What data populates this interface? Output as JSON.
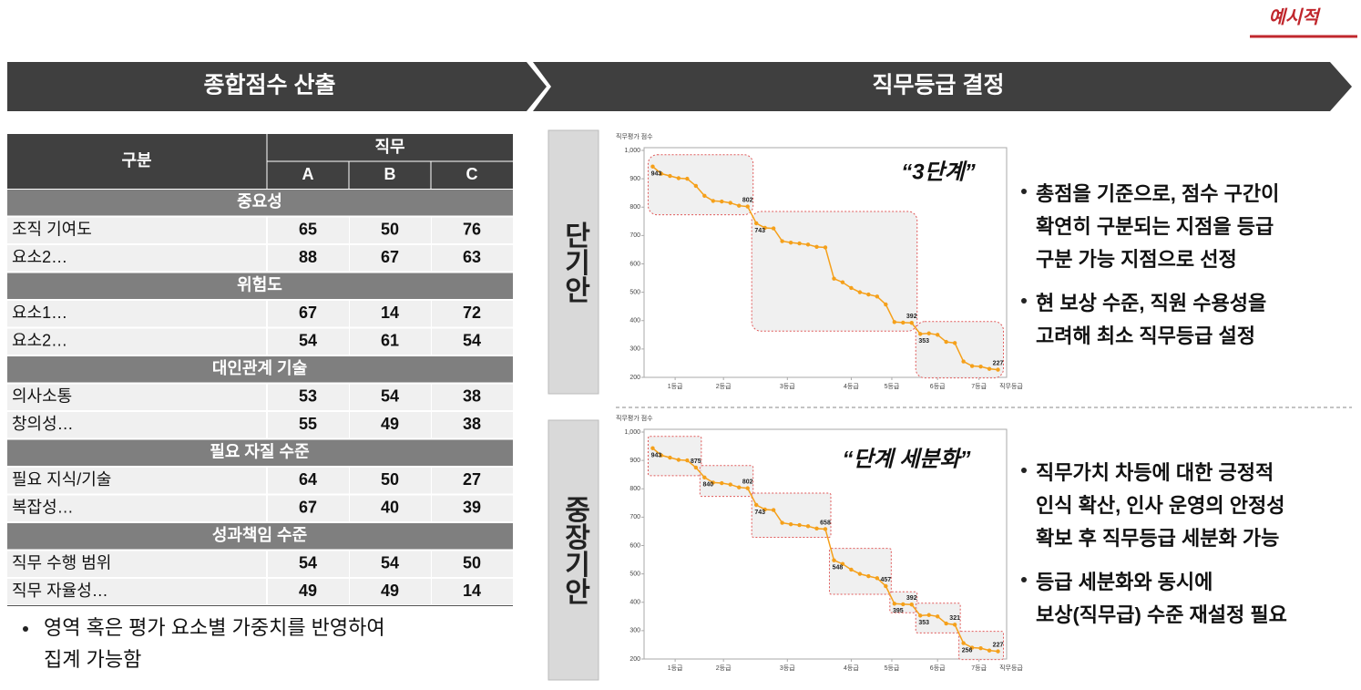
{
  "tag": "예시적",
  "header": {
    "left": "종합점수 산출",
    "right": "직무등급 결정"
  },
  "table": {
    "head": {
      "group": "구분",
      "job": "직무",
      "cols": [
        "A",
        "B",
        "C"
      ]
    },
    "sections": [
      {
        "title": "중요성",
        "rows": [
          [
            "조직 기여도",
            65,
            50,
            76
          ],
          [
            "요소2…",
            88,
            67,
            63
          ]
        ]
      },
      {
        "title": "위험도",
        "rows": [
          [
            "요소1…",
            67,
            14,
            72
          ],
          [
            "요소2…",
            54,
            61,
            54
          ]
        ]
      },
      {
        "title": "대인관계 기술",
        "rows": [
          [
            "의사소통",
            53,
            54,
            38
          ],
          [
            "창의성…",
            55,
            49,
            38
          ]
        ]
      },
      {
        "title": "필요 자질 수준",
        "rows": [
          [
            "필요 지식/기술",
            64,
            50,
            27
          ],
          [
            "복잡성…",
            67,
            40,
            39
          ]
        ]
      },
      {
        "title": "성과책임 수준",
        "rows": [
          [
            "직무 수행 범위",
            54,
            54,
            50
          ],
          [
            "직무 자율성…",
            49,
            49,
            14
          ]
        ]
      }
    ]
  },
  "note": [
    "영역 혹은 평가 요소별 가중치를 반영하여",
    "집계 가능함"
  ],
  "panels": [
    {
      "label": "단기안",
      "quote": "“3단계”",
      "bullets": [
        [
          "총점을 기준으로, 점수 구간이",
          "확연히 구분되는 지점을 등급",
          "구분 가능 지점으로 선정"
        ],
        [
          "현 보상 수준, 직원 수용성을",
          "고려해 최소 직무등급 설정"
        ]
      ],
      "chart": {
        "type": "line",
        "y_label": "직무평가 점수",
        "x_label": "직무등급",
        "color": "#f5a01a",
        "values": [
          943,
          918,
          910,
          902,
          900,
          875,
          840,
          822,
          820,
          815,
          805,
          802,
          743,
          727,
          725,
          680,
          675,
          672,
          668,
          660,
          658,
          548,
          535,
          515,
          500,
          492,
          485,
          457,
          395,
          393,
          392,
          353,
          355,
          350,
          325,
          321,
          256,
          240,
          238,
          230,
          227
        ],
        "labeled": [
          0,
          11,
          12,
          30,
          31,
          40
        ],
        "boxes": [
          [
            1,
            12
          ],
          [
            13,
            31
          ],
          [
            32,
            41
          ]
        ],
        "xlim": [
          0,
          42
        ],
        "ylim": [
          200,
          1000
        ],
        "yticks": [
          200,
          300,
          400,
          500,
          600,
          700,
          800,
          900,
          {
            "value": 1000,
            "label": "1,000"
          }
        ],
        "xticks": [
          {
            "value": 3.6,
            "label": "1등급"
          },
          {
            "value": 9.2,
            "label": "2등급"
          },
          {
            "value": 16.6,
            "label": "3등급"
          },
          {
            "value": 24,
            "label": "4등급"
          },
          {
            "value": 28.7,
            "label": "5등급"
          },
          {
            "value": 34,
            "label": "6등급"
          },
          {
            "value": 38.8,
            "label": "7등급"
          }
        ]
      }
    },
    {
      "label": "중장기안",
      "quote": "“단계 세분화”",
      "bullets": [
        [
          "직무가치 차등에 대한 긍정적",
          "인식 확산, 인사 운영의 안정성",
          "확보 후 직무등급 세분화 가능"
        ],
        [
          "등급 세분화와 동시에",
          "보상(직무급) 수준 재설정 필요"
        ]
      ],
      "chart": {
        "type": "line",
        "y_label": "직무평가 점수",
        "x_label": "직무등급",
        "color": "#f5a01a",
        "values": [
          943,
          918,
          910,
          902,
          900,
          875,
          840,
          822,
          820,
          815,
          805,
          802,
          743,
          727,
          725,
          680,
          675,
          672,
          668,
          660,
          658,
          548,
          535,
          515,
          500,
          492,
          485,
          457,
          395,
          393,
          392,
          353,
          355,
          350,
          325,
          321,
          256,
          240,
          238,
          230,
          227
        ],
        "labeled": [
          0,
          5,
          6,
          11,
          12,
          20,
          21,
          27,
          28,
          30,
          31,
          35,
          36,
          40
        ],
        "boxes": [
          [
            1,
            6
          ],
          [
            7,
            12
          ],
          [
            13,
            21
          ],
          [
            22,
            28
          ],
          [
            29,
            31
          ],
          [
            32,
            36
          ],
          [
            37,
            41
          ]
        ],
        "xlim": [
          0,
          42
        ],
        "ylim": [
          200,
          1000
        ],
        "yticks": [
          200,
          300,
          400,
          500,
          600,
          700,
          800,
          900,
          {
            "value": 1000,
            "label": "1,000"
          }
        ],
        "xticks": [
          {
            "value": 3.6,
            "label": "1등급"
          },
          {
            "value": 9.2,
            "label": "2등급"
          },
          {
            "value": 16.6,
            "label": "3등급"
          },
          {
            "value": 24,
            "label": "4등급"
          },
          {
            "value": 28.7,
            "label": "5등급"
          },
          {
            "value": 34,
            "label": "6등급"
          },
          {
            "value": 38.8,
            "label": "7등급"
          }
        ]
      }
    }
  ]
}
